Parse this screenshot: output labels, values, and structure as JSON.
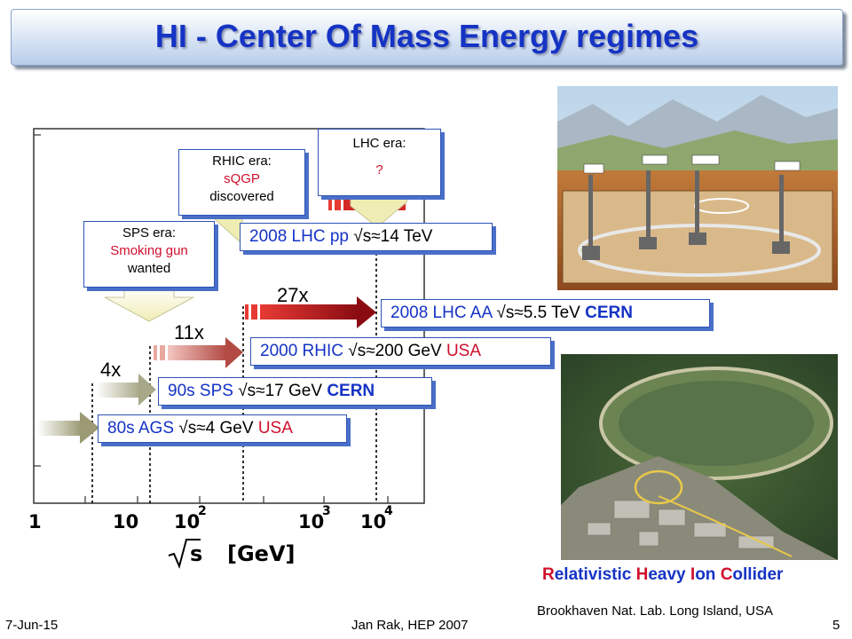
{
  "slide": {
    "title": "HI - Center Of Mass Energy regimes",
    "footer_date": "7-Jun-15",
    "footer_author": "Jan Rak, HEP 2007",
    "page_number": "5"
  },
  "axis": {
    "ticks": [
      "1",
      "10",
      "10",
      "2",
      "10",
      "3",
      "10",
      "4"
    ],
    "xlabel_sqrt": "s",
    "xlabel_unit": "[GeV]"
  },
  "multipliers": {
    "m4": "4x",
    "m11": "11x",
    "m27": "27x"
  },
  "boxes": {
    "ags": {
      "prefix": "80s AGS ",
      "sqrt": "s",
      "approx": "≈",
      "value": "4 GeV ",
      "country": "USA"
    },
    "sps": {
      "prefix": "90s SPS ",
      "sqrt": "s",
      "approx": "≈",
      "value": "17 GeV ",
      "country": "CERN"
    },
    "rhic": {
      "prefix": "2000 RHIC ",
      "sqrt": "s",
      "approx": "≈",
      "value": "200 GeV  ",
      "country": "USA"
    },
    "lhc_aa": {
      "prefix": "2008 LHC AA ",
      "sqrt": "s",
      "approx": "≈",
      "value": "5.5 TeV ",
      "country": "CERN"
    },
    "lhc_pp": {
      "prefix": "2008 LHC pp ",
      "sqrt": "s",
      "approx": "≈",
      "value": "14 TeV"
    }
  },
  "callouts": {
    "sps": {
      "line1": "SPS era:",
      "line2": "Smoking gun",
      "line3": "wanted"
    },
    "rhic": {
      "line1": "RHIC era:",
      "line2": "sQGP",
      "line3": "discovered"
    },
    "lhc": {
      "line1": "LHC era:",
      "line2": "?"
    }
  },
  "photo_captions": {
    "rhic_name": {
      "r": "R",
      "r_rest": "elativistic ",
      "h": "H",
      "h_rest": "eavy ",
      "i": "I",
      "i_rest": "on ",
      "c": "C",
      "c_rest": "ollider"
    },
    "lab": "Brookhaven Nat. Lab. Long Island, USA"
  },
  "colors": {
    "title_blue": "#1533c4",
    "accent_red": "#d0102d",
    "box_border": "#2d53b4"
  }
}
